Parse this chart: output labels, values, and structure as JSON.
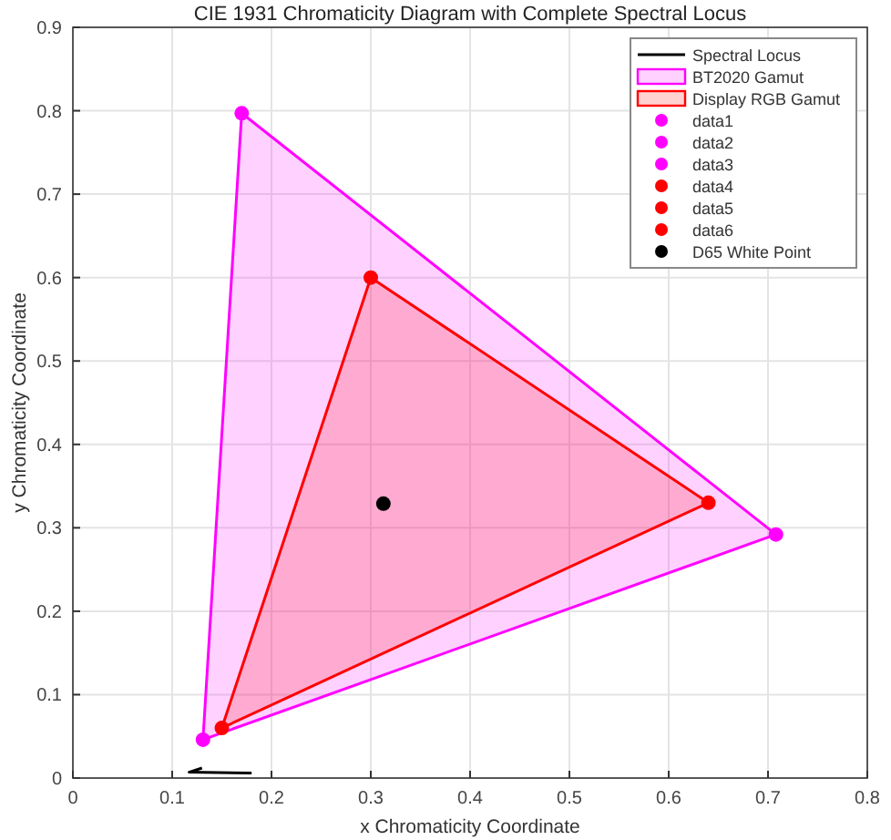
{
  "chart_data": {
    "type": "line",
    "title": "CIE 1931 Chromaticity Diagram with Complete Spectral Locus",
    "xlabel": "x Chromaticity Coordinate",
    "ylabel": "y Chromaticity Coordinate",
    "xlim": [
      0,
      0.8
    ],
    "ylim": [
      0,
      0.9
    ],
    "xticks": [
      0,
      0.1,
      0.2,
      0.3,
      0.4,
      0.5,
      0.6,
      0.7,
      0.8
    ],
    "yticks": [
      0,
      0.1,
      0.2,
      0.3,
      0.4,
      0.5,
      0.6,
      0.7,
      0.8,
      0.9
    ],
    "grid": true,
    "legend": "top right",
    "series": [
      {
        "name": "Spectral Locus",
        "color": "#000000",
        "x": [
          0.18,
          0.117,
          0.13
        ],
        "values": [
          0.006,
          0.007,
          0.012
        ]
      },
      {
        "name": "BT2020 Gamut",
        "type": "area",
        "color": "#ff00ff",
        "x": [
          0.708,
          0.17,
          0.131,
          0.708
        ],
        "values": [
          0.292,
          0.797,
          0.046,
          0.292
        ]
      },
      {
        "name": "Display RGB Gamut",
        "type": "area",
        "color": "#ff0000",
        "x": [
          0.64,
          0.3,
          0.15,
          0.64
        ],
        "values": [
          0.33,
          0.6,
          0.06,
          0.33
        ]
      },
      {
        "name": "data1",
        "type": "scatter",
        "color": "#ff00ff",
        "x": [
          0.708
        ],
        "values": [
          0.292
        ]
      },
      {
        "name": "data2",
        "type": "scatter",
        "color": "#ff00ff",
        "x": [
          0.17
        ],
        "values": [
          0.797
        ]
      },
      {
        "name": "data3",
        "type": "scatter",
        "color": "#ff00ff",
        "x": [
          0.131
        ],
        "values": [
          0.046
        ]
      },
      {
        "name": "data4",
        "type": "scatter",
        "color": "#ff0000",
        "x": [
          0.64
        ],
        "values": [
          0.33
        ]
      },
      {
        "name": "data5",
        "type": "scatter",
        "color": "#ff0000",
        "x": [
          0.3
        ],
        "values": [
          0.6
        ]
      },
      {
        "name": "data6",
        "type": "scatter",
        "color": "#ff0000",
        "x": [
          0.15
        ],
        "values": [
          0.06
        ]
      },
      {
        "name": "D65 White Point",
        "type": "scatter",
        "color": "#000000",
        "x": [
          0.3127
        ],
        "values": [
          0.329
        ]
      }
    ]
  }
}
